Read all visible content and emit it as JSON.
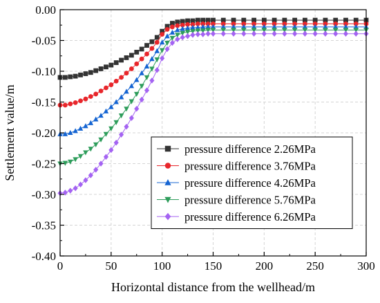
{
  "chart_data": {
    "type": "scatter",
    "xlabel": "Horizontal distance from the wellhead/m",
    "ylabel": "Settlement value/m",
    "xlim": [
      0,
      300
    ],
    "ylim": [
      -0.4,
      0.0
    ],
    "xticks": [
      0,
      50,
      100,
      150,
      200,
      250,
      300
    ],
    "xtick_labels": [
      "0",
      "50",
      "100",
      "150",
      "200",
      "250",
      "300"
    ],
    "yticks": [
      0.0,
      -0.05,
      -0.1,
      -0.15,
      -0.2,
      -0.25,
      -0.3,
      -0.35,
      -0.4
    ],
    "ytick_labels": [
      "0.00",
      "-0.05",
      "-0.10",
      "-0.15",
      "-0.20",
      "-0.25",
      "-0.30",
      "-0.35",
      "-0.40"
    ],
    "grid": true,
    "legend_position": "bottom-right",
    "series": [
      {
        "name": "pressure difference 2.26MPa",
        "color": "#333333",
        "marker": "square",
        "x": [
          0,
          5,
          10,
          15,
          20,
          25,
          30,
          35,
          40,
          45,
          50,
          55,
          60,
          65,
          70,
          75,
          80,
          85,
          90,
          95,
          100,
          105,
          110,
          115,
          120,
          125,
          130,
          135,
          140,
          145,
          150,
          160,
          170,
          180,
          190,
          200,
          210,
          220,
          230,
          240,
          250,
          260,
          270,
          280,
          290,
          300
        ],
        "y": [
          -0.11,
          -0.11,
          -0.109,
          -0.108,
          -0.106,
          -0.104,
          -0.102,
          -0.099,
          -0.096,
          -0.093,
          -0.09,
          -0.086,
          -0.082,
          -0.078,
          -0.074,
          -0.069,
          -0.064,
          -0.058,
          -0.052,
          -0.045,
          -0.035,
          -0.027,
          -0.022,
          -0.02,
          -0.019,
          -0.018,
          -0.018,
          -0.017,
          -0.017,
          -0.017,
          -0.017,
          -0.017,
          -0.017,
          -0.017,
          -0.017,
          -0.017,
          -0.017,
          -0.017,
          -0.017,
          -0.017,
          -0.017,
          -0.017,
          -0.017,
          -0.017,
          -0.017,
          -0.017
        ]
      },
      {
        "name": "pressure difference 3.76MPa",
        "color": "#e8262b",
        "marker": "circle",
        "x": [
          0,
          5,
          10,
          15,
          20,
          25,
          30,
          35,
          40,
          45,
          50,
          55,
          60,
          65,
          70,
          75,
          80,
          85,
          90,
          95,
          100,
          105,
          110,
          115,
          120,
          125,
          130,
          135,
          140,
          145,
          150,
          160,
          170,
          180,
          190,
          200,
          210,
          220,
          230,
          240,
          250,
          260,
          270,
          280,
          290,
          300
        ],
        "y": [
          -0.155,
          -0.155,
          -0.153,
          -0.151,
          -0.148,
          -0.145,
          -0.141,
          -0.137,
          -0.132,
          -0.127,
          -0.122,
          -0.116,
          -0.11,
          -0.103,
          -0.096,
          -0.088,
          -0.08,
          -0.072,
          -0.063,
          -0.053,
          -0.04,
          -0.032,
          -0.028,
          -0.026,
          -0.025,
          -0.024,
          -0.024,
          -0.023,
          -0.023,
          -0.023,
          -0.023,
          -0.023,
          -0.023,
          -0.023,
          -0.023,
          -0.023,
          -0.023,
          -0.023,
          -0.023,
          -0.023,
          -0.023,
          -0.023,
          -0.023,
          -0.023,
          -0.023,
          -0.023
        ]
      },
      {
        "name": "pressure difference 4.26MPa",
        "color": "#1464d2",
        "marker": "triangle-up",
        "x": [
          0,
          5,
          10,
          15,
          20,
          25,
          30,
          35,
          40,
          45,
          50,
          55,
          60,
          65,
          70,
          75,
          80,
          85,
          90,
          95,
          100,
          105,
          110,
          115,
          120,
          125,
          130,
          135,
          140,
          145,
          150,
          160,
          170,
          180,
          190,
          200,
          210,
          220,
          230,
          240,
          250,
          260,
          270,
          280,
          290,
          300
        ],
        "y": [
          -0.202,
          -0.202,
          -0.2,
          -0.197,
          -0.193,
          -0.189,
          -0.184,
          -0.178,
          -0.172,
          -0.165,
          -0.158,
          -0.15,
          -0.142,
          -0.133,
          -0.124,
          -0.114,
          -0.103,
          -0.092,
          -0.08,
          -0.067,
          -0.053,
          -0.043,
          -0.037,
          -0.033,
          -0.031,
          -0.03,
          -0.029,
          -0.029,
          -0.028,
          -0.028,
          -0.028,
          -0.028,
          -0.028,
          -0.028,
          -0.028,
          -0.028,
          -0.028,
          -0.028,
          -0.028,
          -0.028,
          -0.028,
          -0.028,
          -0.028,
          -0.028,
          -0.028,
          -0.028
        ]
      },
      {
        "name": "pressure difference 5.76MPa",
        "color": "#2e9d5b",
        "marker": "triangle-down",
        "x": [
          0,
          5,
          10,
          15,
          20,
          25,
          30,
          35,
          40,
          45,
          50,
          55,
          60,
          65,
          70,
          75,
          80,
          85,
          90,
          95,
          100,
          105,
          110,
          115,
          120,
          125,
          130,
          135,
          140,
          145,
          150,
          160,
          170,
          180,
          190,
          200,
          210,
          220,
          230,
          240,
          250,
          260,
          270,
          280,
          290,
          300
        ],
        "y": [
          -0.25,
          -0.249,
          -0.247,
          -0.243,
          -0.238,
          -0.232,
          -0.226,
          -0.219,
          -0.211,
          -0.202,
          -0.193,
          -0.183,
          -0.172,
          -0.161,
          -0.149,
          -0.137,
          -0.124,
          -0.11,
          -0.096,
          -0.081,
          -0.066,
          -0.054,
          -0.046,
          -0.041,
          -0.038,
          -0.036,
          -0.035,
          -0.034,
          -0.034,
          -0.033,
          -0.033,
          -0.033,
          -0.033,
          -0.033,
          -0.033,
          -0.033,
          -0.033,
          -0.033,
          -0.033,
          -0.033,
          -0.033,
          -0.033,
          -0.033,
          -0.033,
          -0.033,
          -0.033
        ]
      },
      {
        "name": "pressure difference 6.26MPa",
        "color": "#a463f2",
        "marker": "diamond",
        "x": [
          0,
          5,
          10,
          15,
          20,
          25,
          30,
          35,
          40,
          45,
          50,
          55,
          60,
          65,
          70,
          75,
          80,
          85,
          90,
          95,
          100,
          105,
          110,
          115,
          120,
          125,
          130,
          135,
          140,
          145,
          150,
          160,
          170,
          180,
          190,
          200,
          210,
          220,
          230,
          240,
          250,
          260,
          270,
          280,
          290,
          300
        ],
        "y": [
          -0.298,
          -0.297,
          -0.294,
          -0.29,
          -0.284,
          -0.277,
          -0.269,
          -0.26,
          -0.25,
          -0.239,
          -0.228,
          -0.216,
          -0.203,
          -0.19,
          -0.176,
          -0.161,
          -0.146,
          -0.131,
          -0.115,
          -0.098,
          -0.079,
          -0.064,
          -0.054,
          -0.048,
          -0.045,
          -0.043,
          -0.041,
          -0.04,
          -0.04,
          -0.039,
          -0.039,
          -0.039,
          -0.039,
          -0.039,
          -0.039,
          -0.039,
          -0.039,
          -0.039,
          -0.039,
          -0.039,
          -0.039,
          -0.039,
          -0.039,
          -0.039,
          -0.039,
          -0.039
        ]
      }
    ]
  }
}
